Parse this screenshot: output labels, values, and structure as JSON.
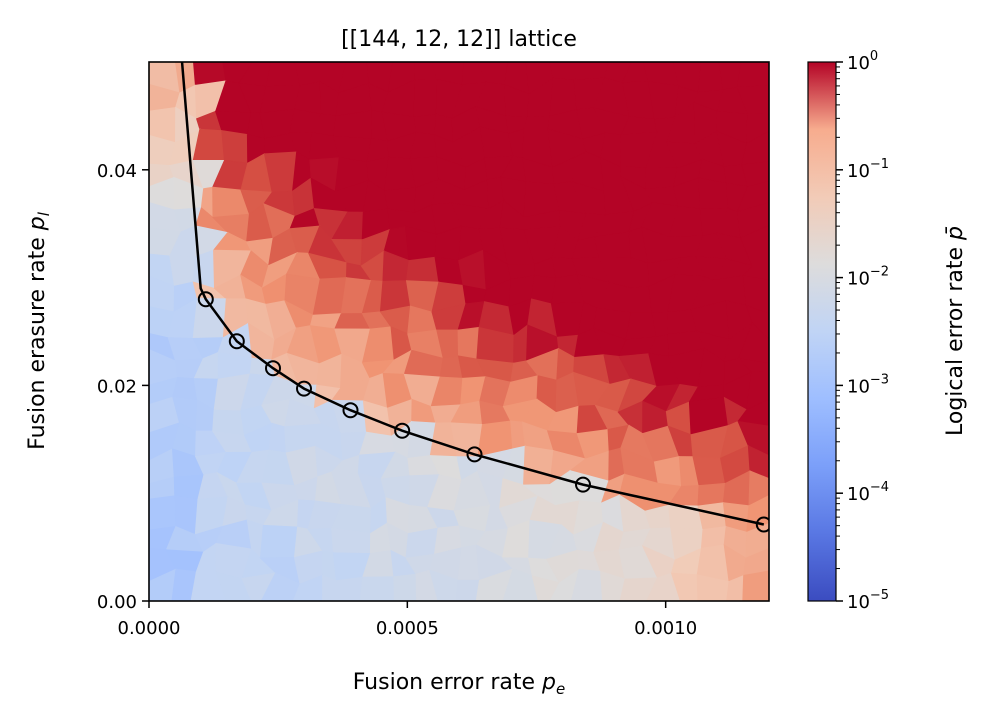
{
  "chart_data": {
    "type": "heatmap",
    "title": "[[144, 12, 12]] lattice",
    "xlabel": "Fusion error rate",
    "xlabel_var": "p",
    "xlabel_sub": "e",
    "ylabel": "Fusion erasure rate",
    "ylabel_var": "p",
    "ylabel_sub": "l",
    "xlim": [
      0,
      0.0012
    ],
    "ylim": [
      0,
      0.05
    ],
    "x_ticks": [
      {
        "value": 0,
        "label": "0.0000"
      },
      {
        "value": 0.0005,
        "label": "0.0005"
      },
      {
        "value": 0.001,
        "label": "0.0010"
      }
    ],
    "y_ticks": [
      {
        "value": 0,
        "label": "0.00"
      },
      {
        "value": 0.02,
        "label": "0.02"
      },
      {
        "value": 0.04,
        "label": "0.04"
      }
    ],
    "colorbar": {
      "label": "Logical error rate",
      "label_var": "p̄",
      "scale": "log",
      "colormap": "coolwarm",
      "range": [
        1e-05,
        1
      ],
      "ticks": [
        {
          "value": 1e-05,
          "base": "10",
          "exp": "−5"
        },
        {
          "value": 0.0001,
          "base": "10",
          "exp": "−4"
        },
        {
          "value": 0.001,
          "base": "10",
          "exp": "−3"
        },
        {
          "value": 0.01,
          "base": "10",
          "exp": "−2"
        },
        {
          "value": 0.1,
          "base": "10",
          "exp": "−1"
        },
        {
          "value": 1,
          "base": "10",
          "exp": "0"
        }
      ]
    },
    "threshold_curve": {
      "color": "#000000",
      "marker": "circle",
      "marker_face": "#ffffff00",
      "points": [
        {
          "x": 0.00011,
          "y": 0.028
        },
        {
          "x": 0.00017,
          "y": 0.0241
        },
        {
          "x": 0.00024,
          "y": 0.0216
        },
        {
          "x": 0.0003,
          "y": 0.0197
        },
        {
          "x": 0.00039,
          "y": 0.0177
        },
        {
          "x": 0.00049,
          "y": 0.0158
        },
        {
          "x": 0.00063,
          "y": 0.0136
        },
        {
          "x": 0.00084,
          "y": 0.0108
        },
        {
          "x": 0.00119,
          "y": 0.0071
        }
      ],
      "extension": [
        {
          "x": 6.3e-05,
          "y": 0.0505
        },
        {
          "x": 0.0001,
          "y": 0.029
        }
      ]
    },
    "grid": false,
    "legend": "none"
  }
}
